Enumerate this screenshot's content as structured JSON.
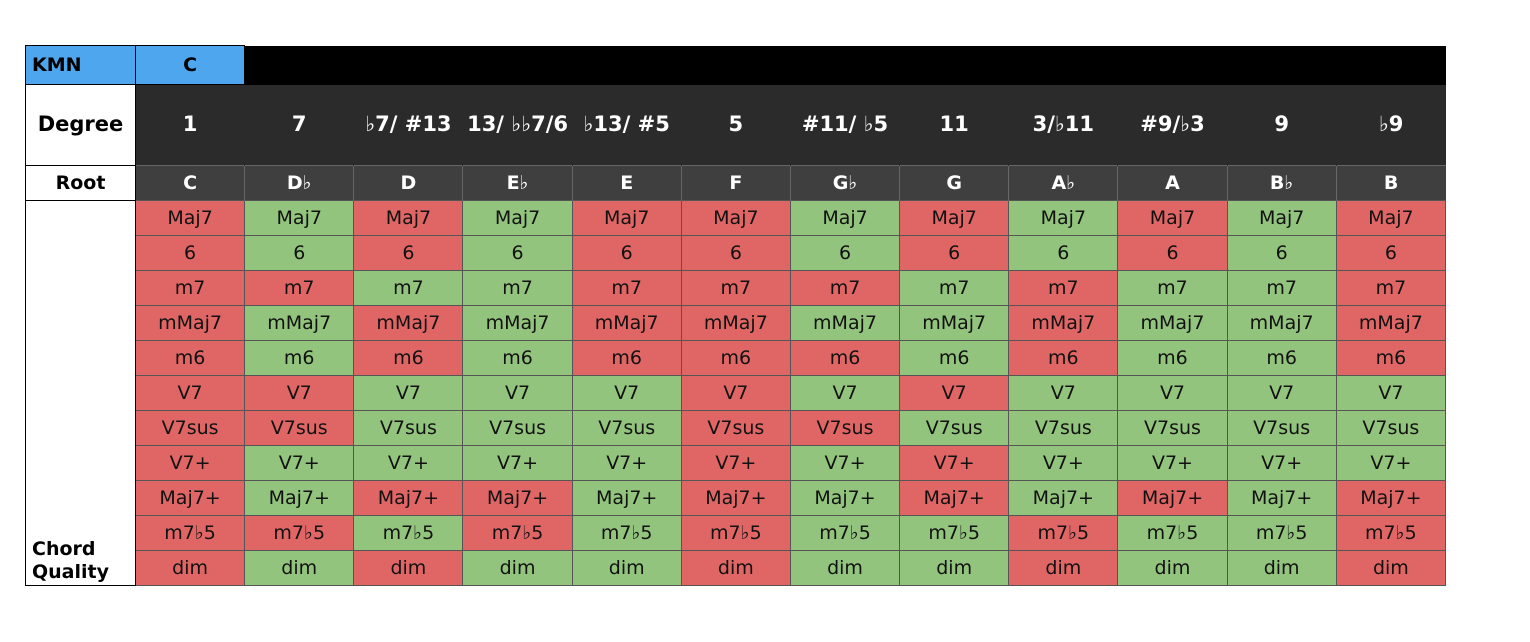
{
  "kmn": {
    "label": "KMN",
    "key": "C"
  },
  "degree_label": "Degree",
  "root_label": "Root",
  "quality_label": "Chord Quality",
  "degrees": [
    "1",
    "7",
    "♭7/\n#13",
    "13/\n♭♭7/6",
    "♭13/\n#5",
    "5",
    "#11/\n♭5",
    "11",
    "3/♭11",
    "#9/♭3",
    "9",
    "♭9"
  ],
  "roots": [
    "C",
    "D♭",
    "D",
    "E♭",
    "E",
    "F",
    "G♭",
    "G",
    "A♭",
    "A",
    "B♭",
    "B"
  ],
  "qualities": [
    {
      "name": "Maj7",
      "cells": [
        "red",
        "green",
        "red",
        "green",
        "red",
        "red",
        "green",
        "red",
        "green",
        "red",
        "green",
        "red"
      ]
    },
    {
      "name": "6",
      "cells": [
        "red",
        "green",
        "red",
        "green",
        "red",
        "red",
        "green",
        "red",
        "green",
        "red",
        "green",
        "red"
      ]
    },
    {
      "name": "m7",
      "cells": [
        "red",
        "red",
        "green",
        "green",
        "red",
        "red",
        "red",
        "green",
        "red",
        "green",
        "green",
        "red"
      ]
    },
    {
      "name": "mMaj7",
      "cells": [
        "red",
        "green",
        "red",
        "green",
        "red",
        "red",
        "green",
        "green",
        "red",
        "green",
        "green",
        "red"
      ]
    },
    {
      "name": "m6",
      "cells": [
        "red",
        "green",
        "red",
        "green",
        "red",
        "red",
        "red",
        "green",
        "red",
        "green",
        "green",
        "red"
      ]
    },
    {
      "name": "V7",
      "cells": [
        "red",
        "red",
        "green",
        "green",
        "green",
        "red",
        "green",
        "red",
        "green",
        "green",
        "green",
        "green"
      ]
    },
    {
      "name": "V7sus",
      "cells": [
        "red",
        "red",
        "green",
        "green",
        "green",
        "red",
        "red",
        "green",
        "green",
        "green",
        "green",
        "green"
      ]
    },
    {
      "name": "V7+",
      "cells": [
        "red",
        "green",
        "green",
        "green",
        "green",
        "red",
        "green",
        "red",
        "green",
        "green",
        "green",
        "green"
      ]
    },
    {
      "name": "Maj7+",
      "cells": [
        "red",
        "green",
        "red",
        "red",
        "green",
        "red",
        "green",
        "red",
        "green",
        "red",
        "green",
        "red"
      ]
    },
    {
      "name": "m7♭5",
      "cells": [
        "red",
        "red",
        "green",
        "red",
        "green",
        "red",
        "green",
        "green",
        "red",
        "green",
        "green",
        "red"
      ]
    },
    {
      "name": "dim",
      "cells": [
        "red",
        "green",
        "red",
        "green",
        "green",
        "red",
        "green",
        "green",
        "red",
        "green",
        "green",
        "red"
      ]
    }
  ]
}
